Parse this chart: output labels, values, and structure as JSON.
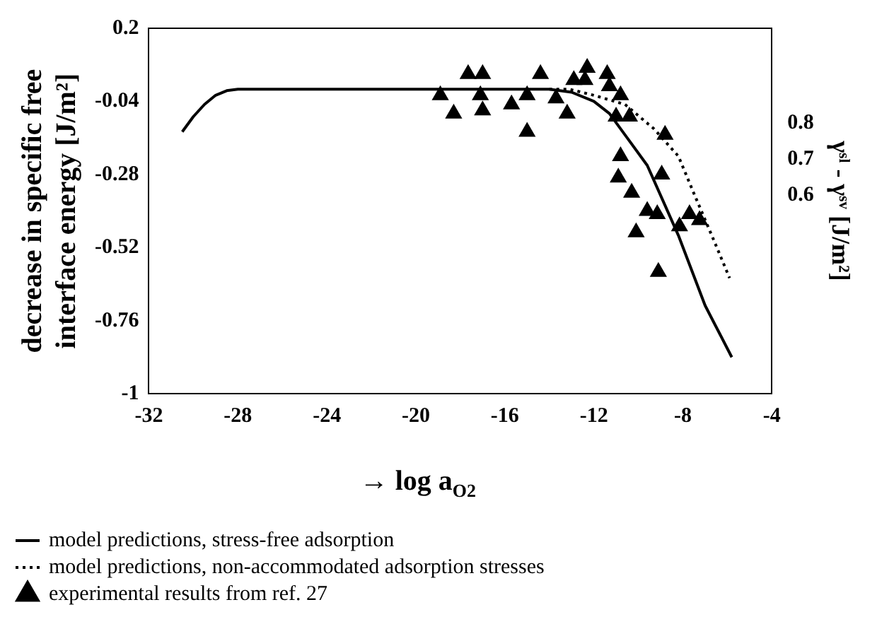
{
  "chart_data": {
    "type": "line",
    "xlabel": "→ log a$_{O2}$",
    "ylabel": "decrease in specific free interface energy [J/m²]",
    "y2label": "γˢˡ - γˢᵛ [J/m²]",
    "xlim": [
      -32,
      -4
    ],
    "xticks": [
      -32,
      -28,
      -24,
      -20,
      -16,
      -12,
      -8,
      -4
    ],
    "ylim": [
      -1,
      0.2
    ],
    "yticks": [
      -1,
      -0.76,
      -0.52,
      -0.28,
      -0.04,
      0.2
    ],
    "y2lim": [
      0.046,
      1.065
    ],
    "y2ticks": [
      0.6,
      0.7,
      0.8
    ],
    "grid": false,
    "legend": "bottom",
    "series": [
      {
        "name": "model predictions, stress-free adsorption",
        "line_style": "solid",
        "marker": "none",
        "color": "#000000",
        "x": [
          -30.5,
          -30,
          -29.5,
          -29,
          -28.5,
          -28,
          -14,
          -13,
          -12,
          -11.3,
          -10.5,
          -9.6,
          -8.2,
          -7,
          -5.8
        ],
        "values": [
          -0.14,
          -0.09,
          -0.05,
          -0.02,
          -0.005,
          0,
          0,
          -0.01,
          -0.04,
          -0.08,
          -0.16,
          -0.25,
          -0.48,
          -0.71,
          -0.88
        ]
      },
      {
        "name": "model predictions, non-accommodated adsorption stresses",
        "line_style": "dotted",
        "marker": "none",
        "color": "#000000",
        "x": [
          -14,
          -13.1,
          -12,
          -10.6,
          -9.3,
          -8.2,
          -7.4,
          -6.7,
          -5.9
        ],
        "values": [
          0,
          0,
          -0.02,
          -0.05,
          -0.13,
          -0.22,
          -0.36,
          -0.48,
          -0.62
        ]
      },
      {
        "name": "experimental results from ref. 27",
        "type": "scatter",
        "marker": "triangle",
        "color": "#000000",
        "x": [
          -18.9,
          -18.3,
          -17.65,
          -17,
          -17.1,
          -17,
          -15.7,
          -15,
          -15,
          -14.4,
          -13.7,
          -13.2,
          -12.9,
          -12.3,
          -12.4,
          -11.4,
          -11.3,
          -10.8,
          -11,
          -10.4,
          -10.8,
          -10.9,
          -10.3,
          -9.6,
          -9.15,
          -10.1,
          -9.1,
          -8.95,
          -8.8,
          -8.15,
          -7.7,
          -7.25
        ],
        "values": [
          -0.02,
          -0.08,
          0.05,
          0.05,
          -0.02,
          -0.07,
          -0.05,
          -0.02,
          -0.14,
          0.05,
          -0.03,
          -0.08,
          0.03,
          0.07,
          0.03,
          0.05,
          0.01,
          -0.02,
          -0.09,
          -0.09,
          -0.22,
          -0.29,
          -0.34,
          -0.4,
          -0.41,
          -0.47,
          -0.6,
          -0.28,
          -0.15,
          -0.45,
          -0.41,
          -0.43
        ]
      }
    ]
  }
}
